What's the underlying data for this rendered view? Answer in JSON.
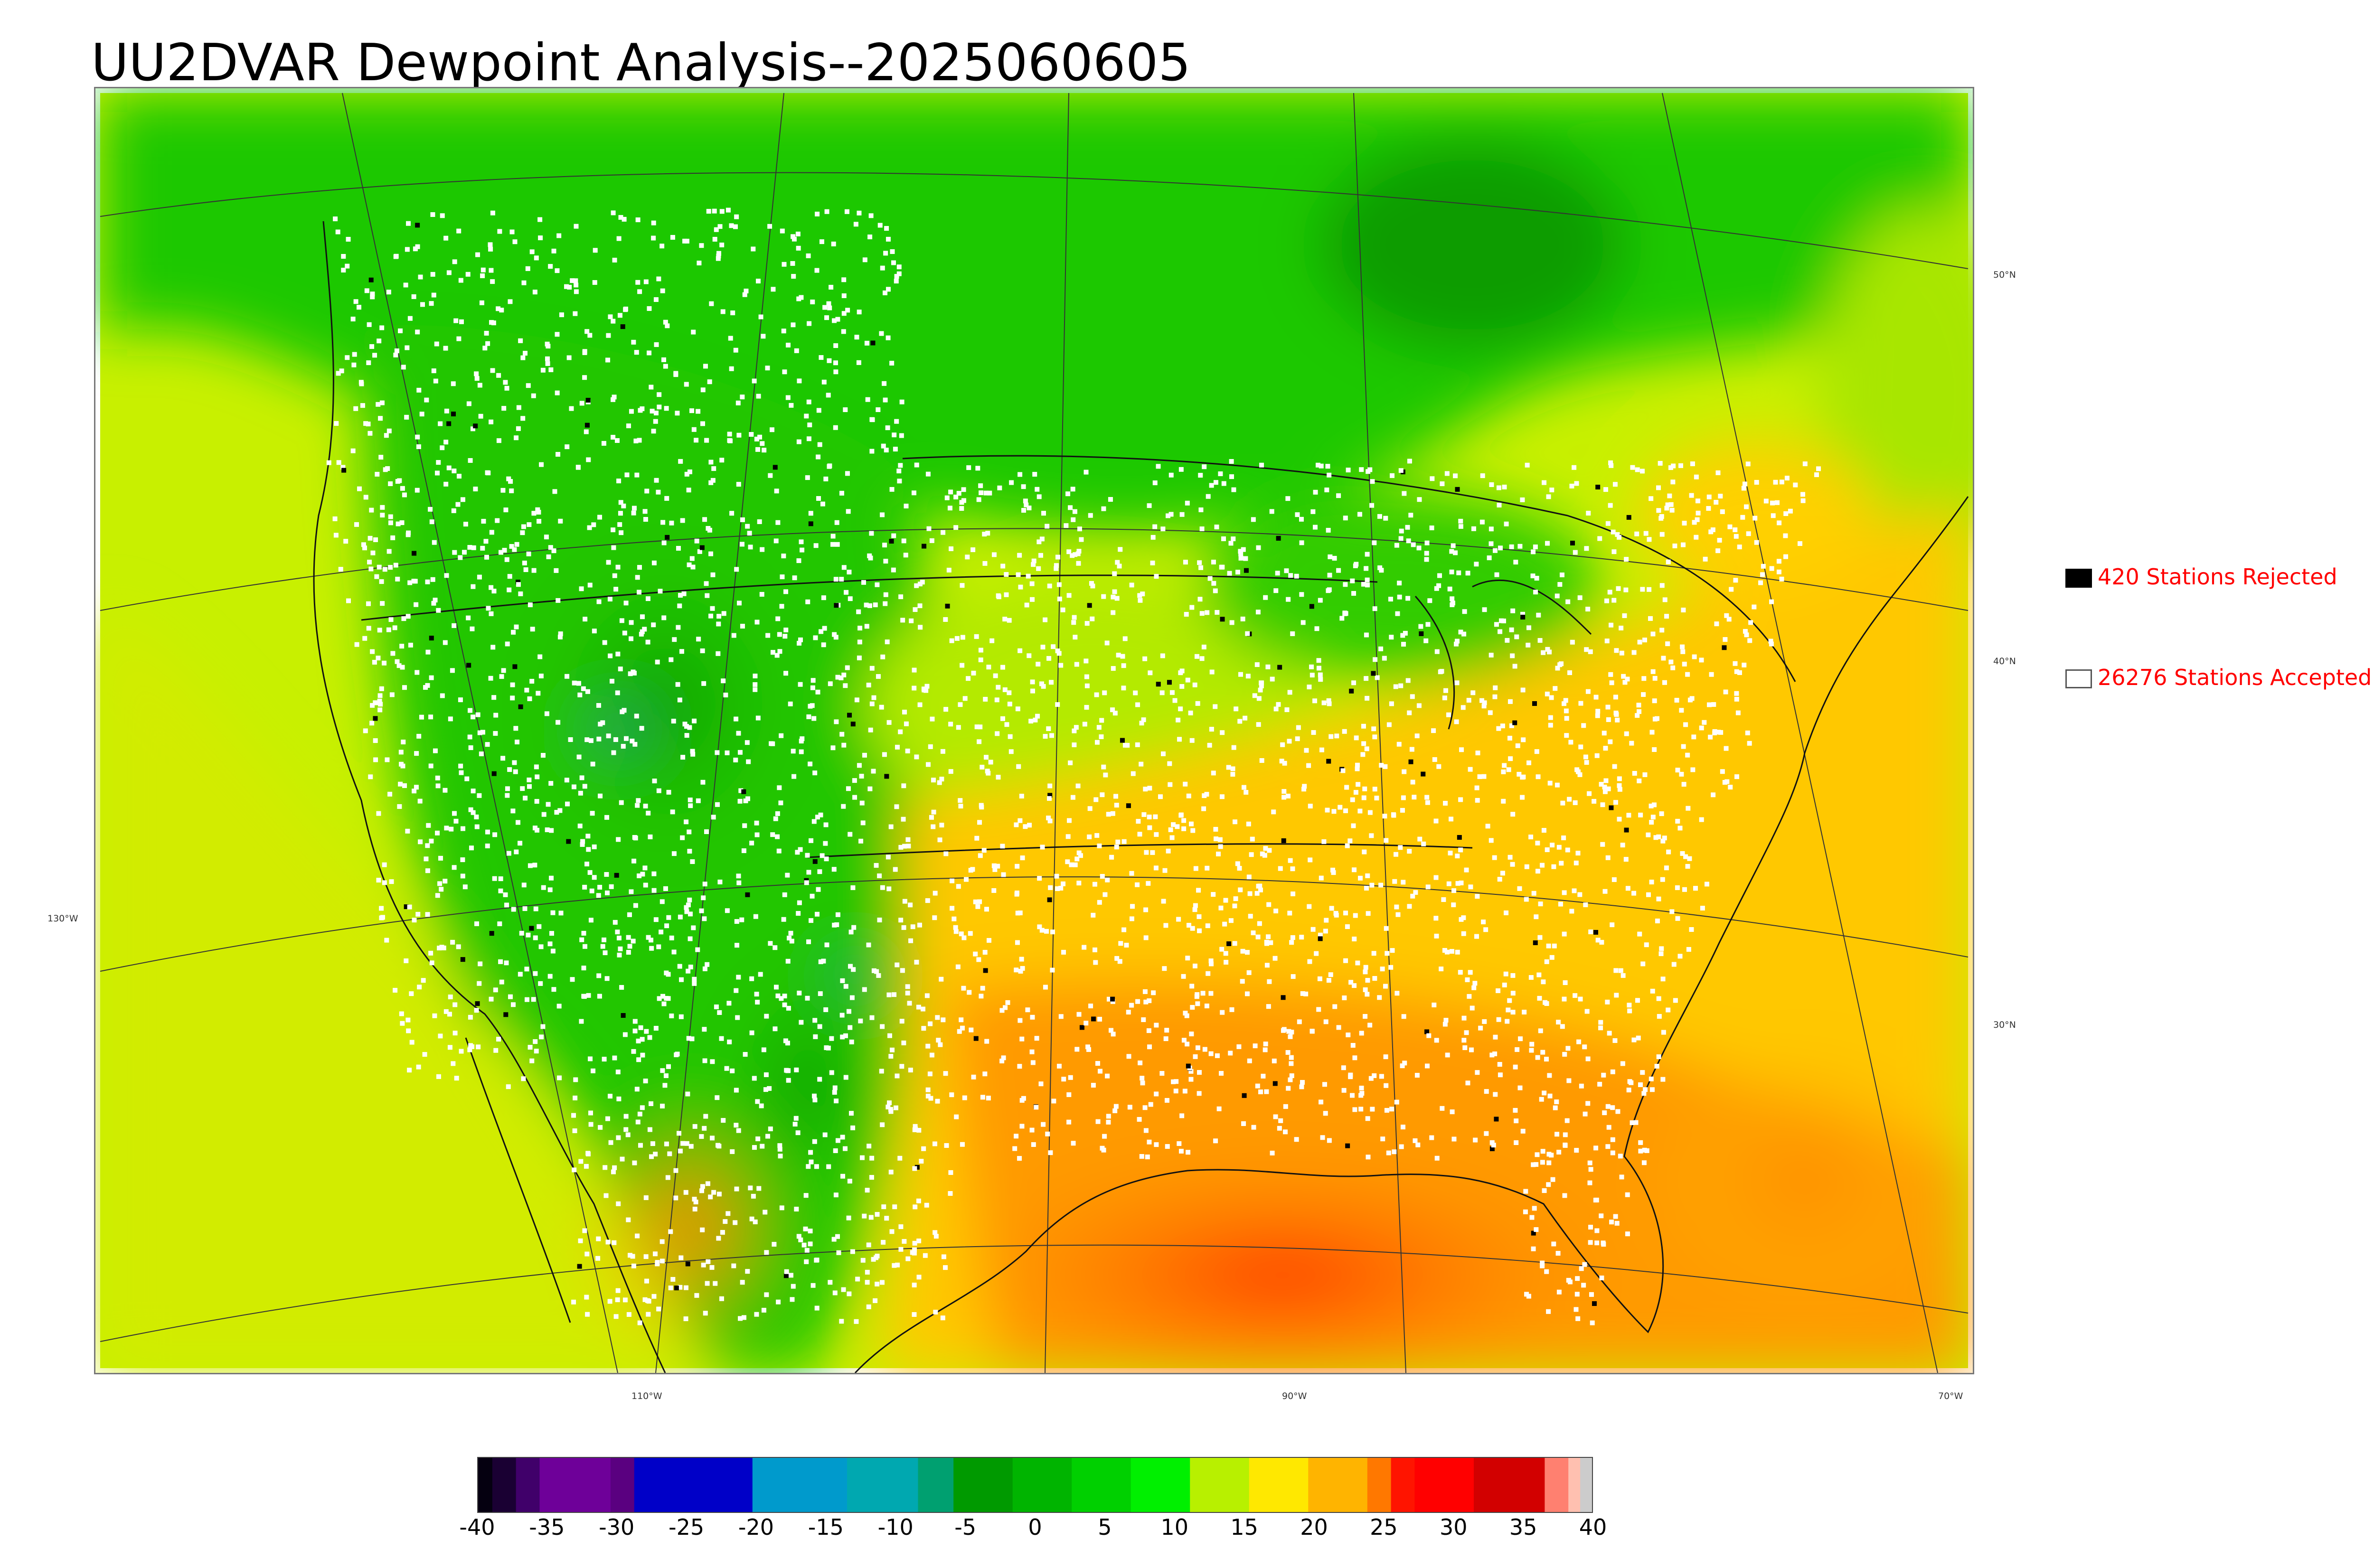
{
  "title": "UU2DVAR Dewpoint Analysis--2025060605",
  "map": {
    "lon_labels": [
      "110°W",
      "90°W",
      "70°W"
    ],
    "lat_labels": [
      "50°N",
      "40°N",
      "30°N"
    ],
    "left_lon_label": "130°W"
  },
  "legend": {
    "rejected_label": "420 Stations Rejected",
    "accepted_label": "26276 Stations Accepted",
    "rejected_color": "#000000",
    "accepted_color": "#ffffff",
    "text_color": "#ff0000"
  },
  "colorbar": {
    "ticks": [
      "-40",
      "-35",
      "-30",
      "-25",
      "-20",
      "-15",
      "-10",
      "-5",
      "0",
      "5",
      "10",
      "15",
      "20",
      "25",
      "30",
      "35",
      "40"
    ],
    "min": -40,
    "max": 40
  }
}
